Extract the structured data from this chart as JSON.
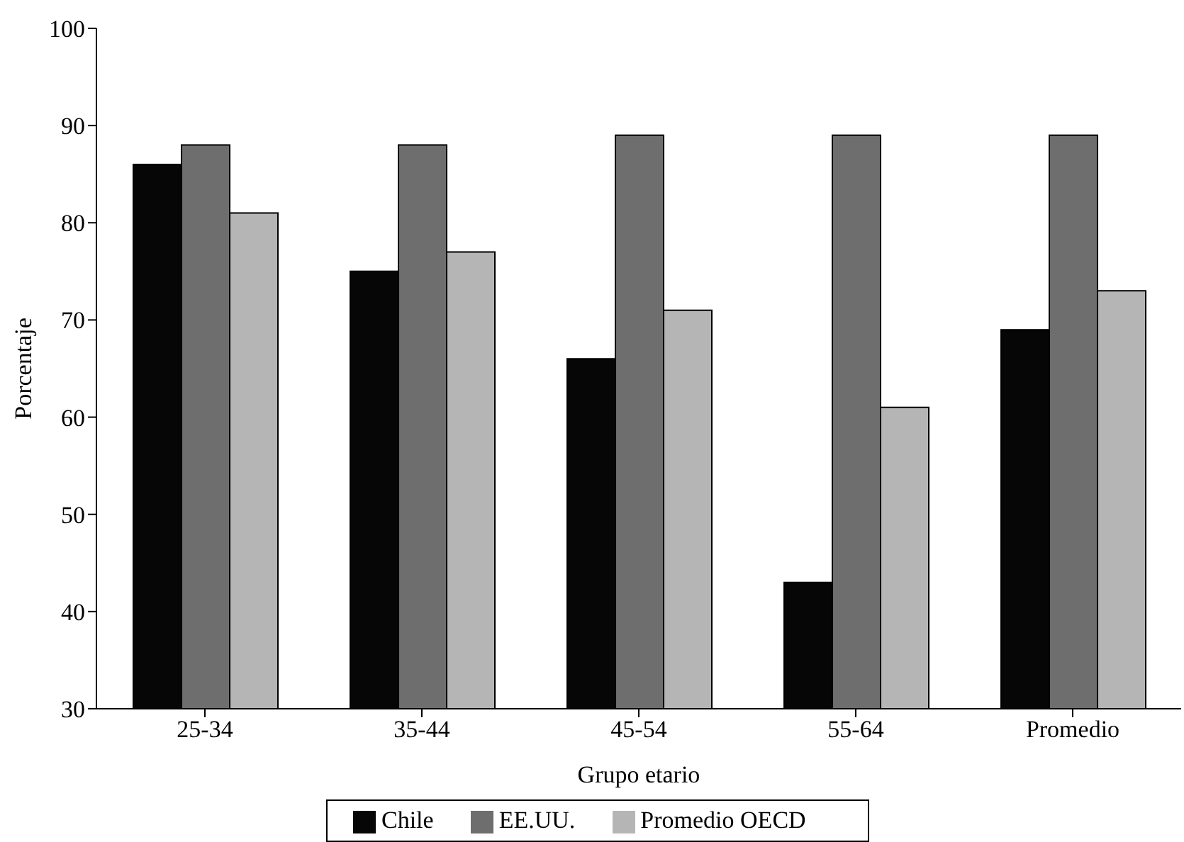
{
  "chart_data": {
    "type": "bar",
    "xlabel": "Grupo etario",
    "ylabel": "Porcentaje",
    "categories": [
      "25-34",
      "35-44",
      "45-54",
      "55-64",
      "Promedio"
    ],
    "series": [
      {
        "name": "Chile",
        "color": "#060606",
        "values": [
          86,
          75,
          66,
          43,
          69
        ]
      },
      {
        "name": "EE.UU.",
        "color": "#6e6e6e",
        "values": [
          88,
          88,
          89,
          89,
          89
        ]
      },
      {
        "name": "Promedio OECD",
        "color": "#b5b5b5",
        "values": [
          81,
          77,
          71,
          61,
          73
        ]
      }
    ],
    "ylim": [
      30,
      100
    ],
    "yticks": [
      30,
      40,
      50,
      60,
      70,
      80,
      90,
      100
    ],
    "grid": false,
    "legend": "bottom"
  }
}
